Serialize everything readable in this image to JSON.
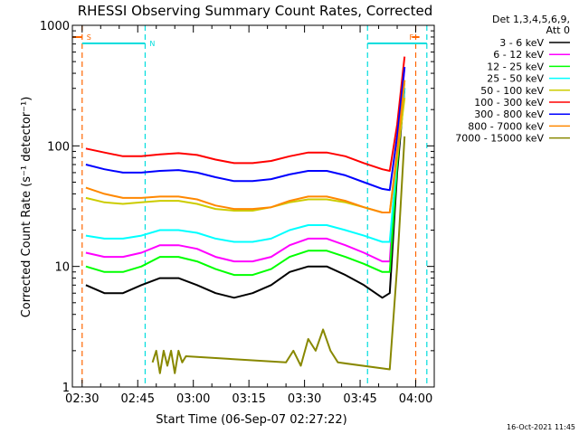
{
  "chart_data": {
    "type": "line",
    "title": "RHESSI Observing Summary Count Rates, Corrected",
    "xlabel": "Start Time (06-Sep-07 02:27:22)",
    "ylabel": "Corrected Count Rate (s⁻¹ detector⁻¹)",
    "y_scale": "log",
    "ylim": [
      1,
      1000
    ],
    "xlim": [
      "02:27:22",
      "04:05:00"
    ],
    "x_tick_labels": [
      "02:30",
      "02:45",
      "03:00",
      "03:15",
      "03:30",
      "03:45",
      "04:00"
    ],
    "y_tick_labels": [
      "1",
      "10",
      "100",
      "1000"
    ],
    "legend": {
      "placement": "right",
      "header": [
        "Det 1,3,4,5,6,9,",
        "Att 0"
      ]
    },
    "annotations": {
      "saa_label": "S",
      "night_label": "N",
      "flare_label": "F",
      "timestamp": "16-Oct-2021 11:45"
    },
    "series": [
      {
        "name": "3 - 6 keV",
        "color": "#000000",
        "x": [
          "02:31",
          "02:36",
          "02:41",
          "02:46",
          "02:51",
          "02:56",
          "03:01",
          "03:06",
          "03:11",
          "03:16",
          "03:21",
          "03:26",
          "03:31",
          "03:36",
          "03:41",
          "03:46",
          "03:51",
          "03:53",
          "03:55",
          "03:57"
        ],
        "values": [
          7,
          6,
          6,
          7,
          8,
          8,
          7,
          6,
          5.5,
          6,
          7,
          9,
          10,
          10,
          8.5,
          7,
          5.5,
          6,
          60,
          300
        ]
      },
      {
        "name": "6 - 12 keV",
        "color": "#ff00ff",
        "x": [
          "02:31",
          "02:36",
          "02:41",
          "02:46",
          "02:51",
          "02:56",
          "03:01",
          "03:06",
          "03:11",
          "03:16",
          "03:21",
          "03:26",
          "03:31",
          "03:36",
          "03:41",
          "03:46",
          "03:51",
          "03:53",
          "03:55",
          "03:57"
        ],
        "values": [
          13,
          12,
          12,
          13,
          15,
          15,
          14,
          12,
          11,
          11,
          12,
          15,
          17,
          17,
          15,
          13,
          11,
          11,
          90,
          450
        ]
      },
      {
        "name": "12 - 25 keV",
        "color": "#00ff00",
        "x": [
          "02:31",
          "02:36",
          "02:41",
          "02:46",
          "02:51",
          "02:56",
          "03:01",
          "03:06",
          "03:11",
          "03:16",
          "03:21",
          "03:26",
          "03:31",
          "03:36",
          "03:41",
          "03:46",
          "03:51",
          "03:53",
          "03:55",
          "03:57"
        ],
        "values": [
          10,
          9,
          9,
          10,
          12,
          12,
          11,
          9.5,
          8.5,
          8.5,
          9.5,
          12,
          13.5,
          13.5,
          12,
          10.5,
          9,
          9,
          70,
          350
        ]
      },
      {
        "name": "25 - 50 keV",
        "color": "#00ffff",
        "x": [
          "02:31",
          "02:36",
          "02:41",
          "02:46",
          "02:51",
          "02:56",
          "03:01",
          "03:06",
          "03:11",
          "03:16",
          "03:21",
          "03:26",
          "03:31",
          "03:36",
          "03:41",
          "03:46",
          "03:51",
          "03:53",
          "03:55",
          "03:57"
        ],
        "values": [
          18,
          17,
          17,
          18,
          20,
          20,
          19,
          17,
          16,
          16,
          17,
          20,
          22,
          22,
          20,
          18,
          16,
          16,
          80,
          300
        ]
      },
      {
        "name": "50 - 100 keV",
        "color": "#cccc00",
        "x": [
          "02:31",
          "02:36",
          "02:41",
          "02:46",
          "02:51",
          "02:56",
          "03:01",
          "03:06",
          "03:11",
          "03:16",
          "03:21",
          "03:26",
          "03:31",
          "03:36",
          "03:41",
          "03:46",
          "03:51",
          "03:53",
          "03:55",
          "03:57"
        ],
        "values": [
          37,
          34,
          33,
          34,
          35,
          35,
          33,
          30,
          29,
          29,
          31,
          34,
          36,
          36,
          34,
          31,
          28,
          28,
          80,
          250
        ]
      },
      {
        "name": "100 - 300 keV",
        "color": "#ff0000",
        "x": [
          "02:31",
          "02:36",
          "02:41",
          "02:46",
          "02:51",
          "02:56",
          "03:01",
          "03:06",
          "03:11",
          "03:16",
          "03:21",
          "03:26",
          "03:31",
          "03:36",
          "03:41",
          "03:46",
          "03:51",
          "03:53",
          "03:55",
          "03:57"
        ],
        "values": [
          95,
          88,
          82,
          82,
          85,
          87,
          84,
          77,
          72,
          72,
          75,
          82,
          88,
          88,
          82,
          72,
          64,
          62,
          150,
          550
        ]
      },
      {
        "name": "300 - 800 keV",
        "color": "#0000ff",
        "x": [
          "02:31",
          "02:36",
          "02:41",
          "02:46",
          "02:51",
          "02:56",
          "03:01",
          "03:06",
          "03:11",
          "03:16",
          "03:21",
          "03:26",
          "03:31",
          "03:36",
          "03:41",
          "03:46",
          "03:51",
          "03:53",
          "03:55",
          "03:57"
        ],
        "values": [
          70,
          64,
          60,
          60,
          62,
          63,
          60,
          55,
          51,
          51,
          53,
          58,
          62,
          62,
          57,
          50,
          44,
          43,
          120,
          450
        ]
      },
      {
        "name": "800 - 7000 keV",
        "color": "#ff8800",
        "x": [
          "02:31",
          "02:36",
          "02:41",
          "02:46",
          "02:51",
          "02:56",
          "03:01",
          "03:06",
          "03:11",
          "03:16",
          "03:21",
          "03:26",
          "03:31",
          "03:36",
          "03:41",
          "03:46",
          "03:51",
          "03:53",
          "03:55",
          "03:57"
        ],
        "values": [
          45,
          40,
          37,
          37,
          38,
          38,
          36,
          32,
          30,
          30,
          31,
          35,
          38,
          38,
          35,
          31,
          28,
          28,
          90,
          350
        ]
      },
      {
        "name": "7000 - 15000 keV",
        "color": "#888800",
        "x": [
          "02:49",
          "02:50",
          "02:51",
          "02:52",
          "02:53",
          "02:54",
          "02:55",
          "02:56",
          "02:57",
          "02:58",
          "03:25",
          "03:27",
          "03:29",
          "03:31",
          "03:33",
          "03:35",
          "03:37",
          "03:39",
          "03:53",
          "03:55",
          "03:57"
        ],
        "values": [
          1.6,
          2,
          1.3,
          2,
          1.5,
          2,
          1.3,
          2,
          1.6,
          1.8,
          1.6,
          2,
          1.5,
          2.5,
          2,
          3,
          2,
          1.6,
          1.4,
          10,
          120
        ]
      }
    ]
  }
}
